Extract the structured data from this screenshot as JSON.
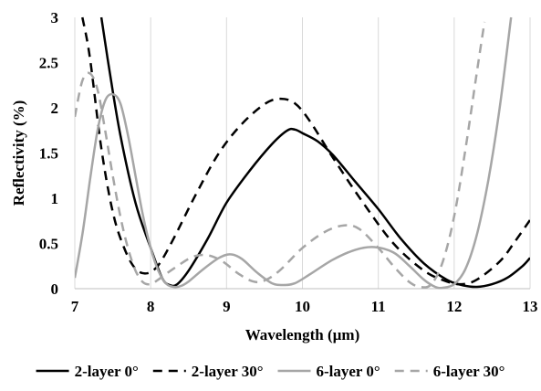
{
  "chart_data": {
    "type": "line",
    "xlabel": "Wavelength (µm)",
    "ylabel": "Reflectivity (%)",
    "xlim": [
      7,
      13
    ],
    "ylim": [
      0,
      3
    ],
    "x_ticks": [
      "7",
      "8",
      "9",
      "10",
      "11",
      "12",
      "13"
    ],
    "y_ticks": [
      "0",
      "0.5",
      "1",
      "1.5",
      "2",
      "2.5",
      "3"
    ],
    "grid": "vertical",
    "legend_position": "bottom",
    "series": [
      {
        "name": "2-layer 0°",
        "color": "#000000",
        "dash": "solid",
        "points": [
          [
            7.35,
            3.0
          ],
          [
            7.45,
            2.45
          ],
          [
            7.6,
            1.7
          ],
          [
            7.8,
            0.95
          ],
          [
            8.0,
            0.45
          ],
          [
            8.15,
            0.12
          ],
          [
            8.25,
            0.04
          ],
          [
            8.35,
            0.05
          ],
          [
            8.5,
            0.2
          ],
          [
            8.75,
            0.55
          ],
          [
            9.0,
            0.95
          ],
          [
            9.3,
            1.3
          ],
          [
            9.6,
            1.6
          ],
          [
            9.8,
            1.75
          ],
          [
            9.9,
            1.76
          ],
          [
            10.0,
            1.72
          ],
          [
            10.2,
            1.63
          ],
          [
            10.4,
            1.48
          ],
          [
            10.7,
            1.18
          ],
          [
            11.0,
            0.88
          ],
          [
            11.3,
            0.55
          ],
          [
            11.6,
            0.28
          ],
          [
            11.9,
            0.1
          ],
          [
            12.1,
            0.04
          ],
          [
            12.3,
            0.02
          ],
          [
            12.5,
            0.05
          ],
          [
            12.7,
            0.12
          ],
          [
            12.9,
            0.25
          ],
          [
            13.0,
            0.34
          ]
        ]
      },
      {
        "name": "2-layer 30°",
        "color": "#000000",
        "dash": "dashed",
        "points": [
          [
            7.1,
            3.0
          ],
          [
            7.2,
            2.55
          ],
          [
            7.35,
            1.55
          ],
          [
            7.5,
            0.85
          ],
          [
            7.65,
            0.45
          ],
          [
            7.8,
            0.22
          ],
          [
            7.95,
            0.17
          ],
          [
            8.1,
            0.26
          ],
          [
            8.3,
            0.55
          ],
          [
            8.6,
            1.05
          ],
          [
            8.9,
            1.5
          ],
          [
            9.2,
            1.82
          ],
          [
            9.5,
            2.04
          ],
          [
            9.7,
            2.1
          ],
          [
            9.9,
            2.05
          ],
          [
            10.1,
            1.85
          ],
          [
            10.4,
            1.45
          ],
          [
            10.8,
            0.95
          ],
          [
            11.2,
            0.5
          ],
          [
            11.6,
            0.2
          ],
          [
            11.9,
            0.08
          ],
          [
            12.1,
            0.05
          ],
          [
            12.3,
            0.1
          ],
          [
            12.6,
            0.3
          ],
          [
            12.8,
            0.52
          ],
          [
            13.0,
            0.76
          ]
        ]
      },
      {
        "name": "6-layer 0°",
        "color": "#a6a6a6",
        "dash": "solid",
        "points": [
          [
            7.0,
            0.12
          ],
          [
            7.1,
            0.6
          ],
          [
            7.2,
            1.2
          ],
          [
            7.3,
            1.75
          ],
          [
            7.4,
            2.08
          ],
          [
            7.5,
            2.15
          ],
          [
            7.6,
            2.05
          ],
          [
            7.7,
            1.7
          ],
          [
            7.8,
            1.25
          ],
          [
            7.9,
            0.8
          ],
          [
            8.0,
            0.45
          ],
          [
            8.1,
            0.2
          ],
          [
            8.2,
            0.06
          ],
          [
            8.3,
            0.02
          ],
          [
            8.4,
            0.03
          ],
          [
            8.5,
            0.08
          ],
          [
            8.7,
            0.22
          ],
          [
            8.9,
            0.34
          ],
          [
            9.05,
            0.38
          ],
          [
            9.2,
            0.33
          ],
          [
            9.4,
            0.18
          ],
          [
            9.6,
            0.06
          ],
          [
            9.75,
            0.04
          ],
          [
            9.9,
            0.06
          ],
          [
            10.1,
            0.16
          ],
          [
            10.4,
            0.32
          ],
          [
            10.7,
            0.43
          ],
          [
            10.95,
            0.46
          ],
          [
            11.2,
            0.4
          ],
          [
            11.4,
            0.26
          ],
          [
            11.6,
            0.1
          ],
          [
            11.75,
            0.02
          ],
          [
            11.85,
            0.01
          ],
          [
            12.0,
            0.05
          ],
          [
            12.15,
            0.22
          ],
          [
            12.3,
            0.6
          ],
          [
            12.45,
            1.2
          ],
          [
            12.6,
            2.0
          ],
          [
            12.75,
            3.0
          ]
        ]
      },
      {
        "name": "6-layer 30°",
        "color": "#a6a6a6",
        "dash": "dashed",
        "points": [
          [
            7.0,
            1.9
          ],
          [
            7.1,
            2.3
          ],
          [
            7.2,
            2.38
          ],
          [
            7.3,
            2.2
          ],
          [
            7.4,
            1.75
          ],
          [
            7.5,
            1.25
          ],
          [
            7.6,
            0.8
          ],
          [
            7.7,
            0.45
          ],
          [
            7.8,
            0.2
          ],
          [
            7.9,
            0.07
          ],
          [
            8.0,
            0.05
          ],
          [
            8.1,
            0.1
          ],
          [
            8.3,
            0.22
          ],
          [
            8.55,
            0.35
          ],
          [
            8.75,
            0.37
          ],
          [
            8.95,
            0.3
          ],
          [
            9.15,
            0.17
          ],
          [
            9.35,
            0.08
          ],
          [
            9.5,
            0.09
          ],
          [
            9.7,
            0.2
          ],
          [
            10.0,
            0.45
          ],
          [
            10.3,
            0.63
          ],
          [
            10.55,
            0.7
          ],
          [
            10.75,
            0.66
          ],
          [
            11.0,
            0.45
          ],
          [
            11.2,
            0.25
          ],
          [
            11.4,
            0.08
          ],
          [
            11.55,
            0.02
          ],
          [
            11.7,
            0.05
          ],
          [
            11.85,
            0.3
          ],
          [
            12.0,
            0.8
          ],
          [
            12.15,
            1.55
          ],
          [
            12.3,
            2.4
          ],
          [
            12.4,
            2.95
          ]
        ]
      }
    ]
  }
}
